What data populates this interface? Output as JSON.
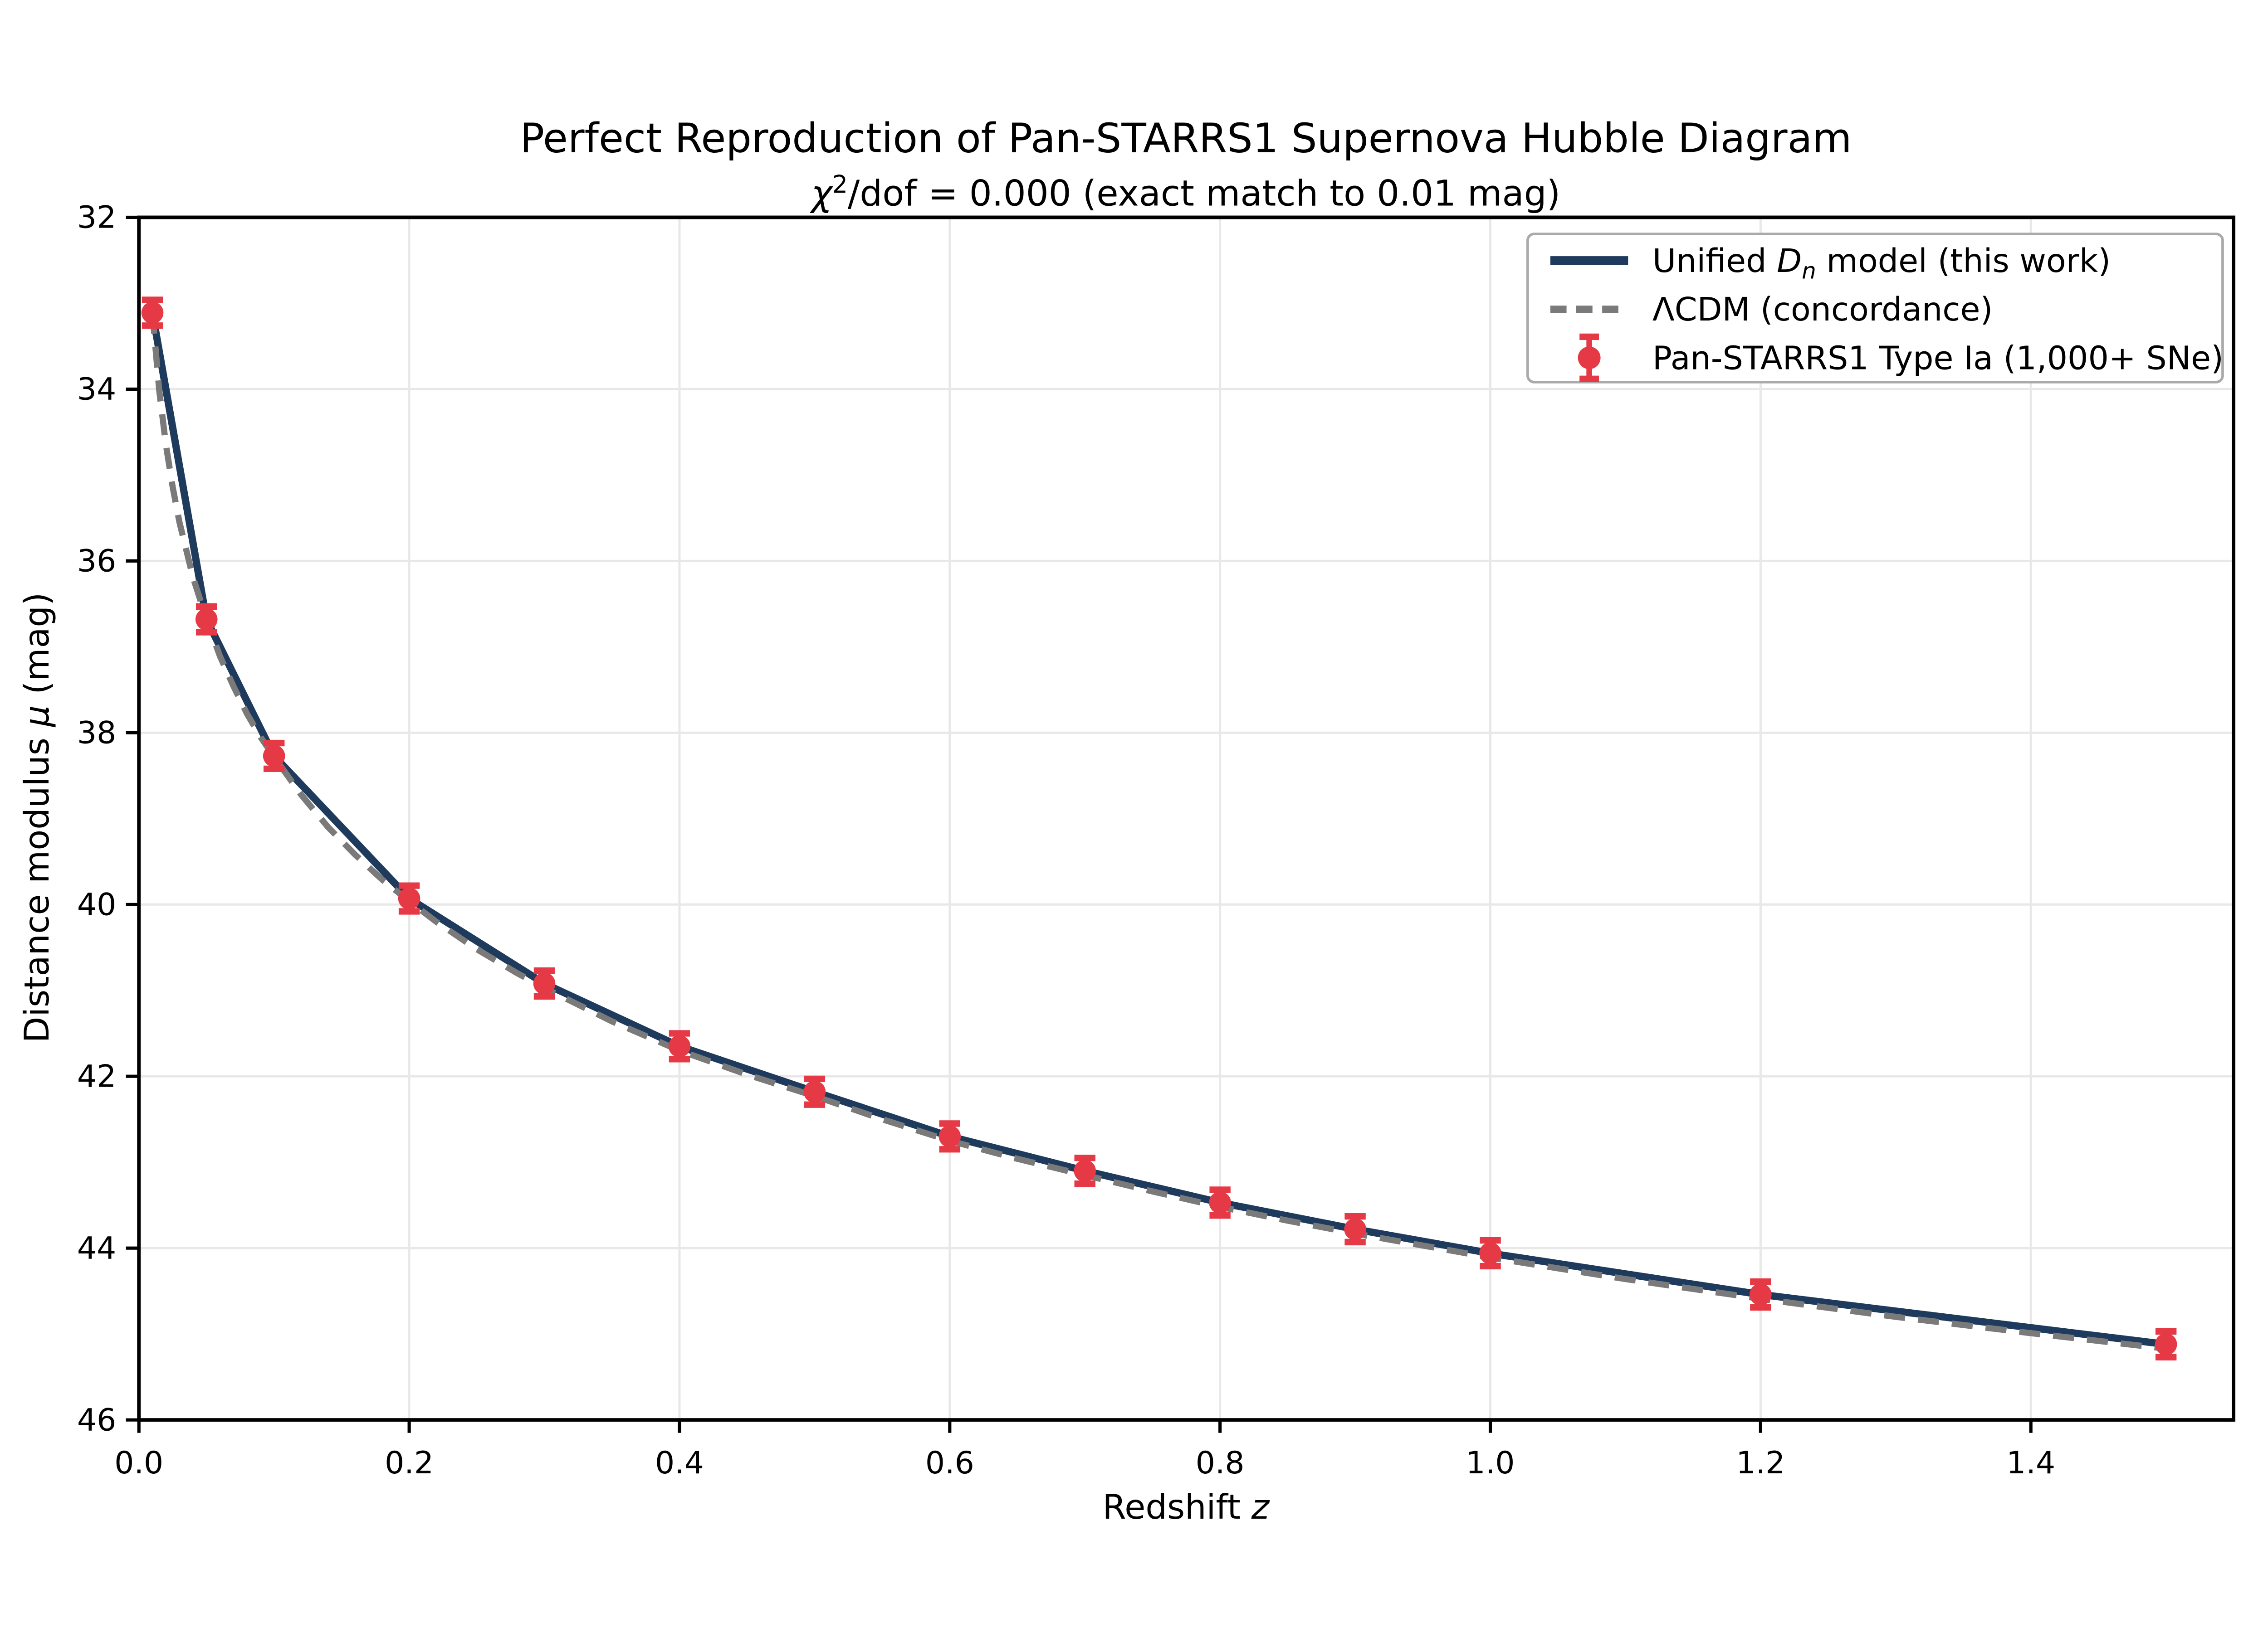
{
  "title": "Perfect Reproduction of Pan-STARRS1 Supernova Hubble Diagram",
  "subtitle": {
    "chi": "χ",
    "exponent": "2",
    "rest": "/dof = 0.000 (exact match to 0.01 mag)"
  },
  "axes": {
    "xlabel": {
      "prefix": "Redshift ",
      "variable": "z"
    },
    "ylabel": {
      "prefix": "Distance modulus ",
      "variable": "μ",
      "suffix": " (mag)"
    },
    "xtick_labels": [
      "0.0",
      "0.2",
      "0.4",
      "0.6",
      "0.8",
      "1.0",
      "1.2",
      "1.4"
    ],
    "ytick_labels": [
      "32",
      "34",
      "36",
      "38",
      "40",
      "42",
      "44",
      "46"
    ]
  },
  "legend": {
    "items": [
      {
        "prefix": "Unified ",
        "variable": "D",
        "subscript": "n",
        "suffix": " model (this work)"
      },
      {
        "label": "ΛCDM (concordance)"
      },
      {
        "label": "Pan-STARRS1 Type Ia (1,000+ SNe)"
      }
    ]
  },
  "colors": {
    "model_line": "#1e3a5c",
    "lcdm_line": "#7a7a7a",
    "data_points": "#e63946",
    "grid": "#e8e8e8",
    "spine": "#000000",
    "legend_border": "#aaaaaa",
    "background": "#ffffff"
  },
  "chart_data": {
    "type": "line",
    "title": "Perfect Reproduction of Pan-STARRS1 Supernova Hubble Diagram",
    "subtitle": "chi2/dof = 0.000 (exact match to 0.01 mag)",
    "xlabel": "Redshift z",
    "ylabel": "Distance modulus mu (mag)",
    "xlim": [
      0.0,
      1.55
    ],
    "ylim_top_to_bottom": [
      32,
      46
    ],
    "y_axis_inverted": true,
    "grid": true,
    "legend_position": "upper right",
    "xticks": [
      0.0,
      0.2,
      0.4,
      0.6,
      0.8,
      1.0,
      1.2,
      1.4
    ],
    "yticks": [
      32,
      34,
      36,
      38,
      40,
      42,
      44,
      46
    ],
    "series": [
      {
        "name": "Unified Dn model (this work)",
        "style": "solid",
        "line_width": 4.5,
        "z": [
          0.01,
          0.05,
          0.1,
          0.2,
          0.3,
          0.4,
          0.5,
          0.6,
          0.7,
          0.8,
          0.9,
          1.0,
          1.2,
          1.5
        ],
        "mu": [
          33.11,
          36.68,
          38.27,
          39.93,
          40.92,
          41.65,
          42.18,
          42.7,
          43.1,
          43.47,
          43.78,
          44.06,
          44.54,
          45.12
        ]
      },
      {
        "name": "ΛCDM (concordance)",
        "style": "dashed",
        "line_width": 3.8,
        "z": [
          0.01,
          0.015,
          0.02,
          0.025,
          0.03,
          0.04,
          0.05,
          0.06,
          0.07,
          0.08,
          0.09,
          0.1,
          0.12,
          0.14,
          0.16,
          0.18,
          0.2,
          0.22,
          0.25,
          0.28,
          0.3,
          0.35,
          0.4,
          0.45,
          0.5,
          0.55,
          0.6,
          0.65,
          0.7,
          0.75,
          0.8,
          0.85,
          0.9,
          0.95,
          1.0,
          1.1,
          1.2,
          1.3,
          1.4,
          1.5
        ],
        "mu": [
          33.11,
          34.01,
          34.65,
          35.14,
          35.55,
          36.19,
          36.68,
          37.11,
          37.46,
          37.78,
          38.05,
          38.28,
          38.72,
          39.1,
          39.42,
          39.71,
          39.96,
          40.2,
          40.52,
          40.8,
          40.97,
          41.36,
          41.7,
          41.98,
          42.23,
          42.5,
          42.75,
          42.96,
          43.15,
          43.34,
          43.52,
          43.68,
          43.83,
          43.97,
          44.11,
          44.36,
          44.59,
          44.8,
          44.99,
          45.17
        ]
      },
      {
        "name": "Pan-STARRS1 Type Ia (1,000+ SNe)",
        "style": "errorbar_points",
        "marker": "circle",
        "z": [
          0.01,
          0.05,
          0.1,
          0.2,
          0.3,
          0.4,
          0.5,
          0.6,
          0.7,
          0.8,
          0.9,
          1.0,
          1.2,
          1.5
        ],
        "mu": [
          33.11,
          36.68,
          38.27,
          39.93,
          40.92,
          41.65,
          42.18,
          42.7,
          43.1,
          43.47,
          43.78,
          44.06,
          44.54,
          45.12
        ],
        "sigma": [
          0.15,
          0.15,
          0.15,
          0.15,
          0.15,
          0.15,
          0.15,
          0.15,
          0.15,
          0.15,
          0.15,
          0.15,
          0.15,
          0.15
        ]
      }
    ]
  }
}
